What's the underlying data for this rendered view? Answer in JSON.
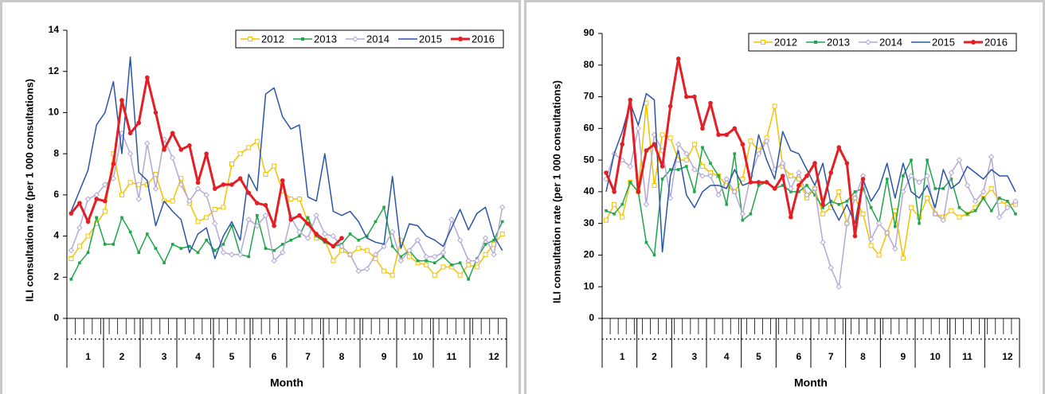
{
  "chart_data": [
    {
      "type": "line",
      "y_label": "ILI consultation rate (per 1 000 consultations)",
      "x_label": "Month",
      "legend": "upper right",
      "categories": [
        null,
        null,
        "1",
        null,
        null,
        null,
        "2",
        null,
        null,
        null,
        null,
        "3",
        null,
        null,
        null,
        "4",
        null,
        null,
        null,
        "5",
        null,
        null,
        null,
        null,
        "6",
        null,
        null,
        null,
        "7",
        null,
        null,
        null,
        "8",
        null,
        null,
        null,
        null,
        "9",
        null,
        null,
        null,
        "10",
        null,
        null,
        null,
        "11",
        null,
        null,
        null,
        null,
        "12",
        null
      ],
      "ylim": [
        0,
        14
      ],
      "yticks": [
        0,
        2,
        4,
        6,
        8,
        10,
        12,
        14
      ],
      "series": [
        {
          "name": "2012",
          "color": "#f2c200",
          "values": [
            2.9,
            3.5,
            4.0,
            4.6,
            5.2,
            8.0,
            6.0,
            6.6,
            6.5,
            6.5,
            7.0,
            5.7,
            5.7,
            6.8,
            5.6,
            4.7,
            4.9,
            5.3,
            5.4,
            7.5,
            8.0,
            8.3,
            8.6,
            7.0,
            7.4,
            6.2,
            5.8,
            5.8,
            4.7,
            3.9,
            3.8,
            2.8,
            3.3,
            3.1,
            3.4,
            3.3,
            2.9,
            2.3,
            2.1,
            3.8,
            3.0,
            2.7,
            2.6,
            2.1,
            2.5,
            2.5,
            2.1,
            2.6,
            2.5,
            3.1,
            3.6,
            4.1
          ]
        },
        {
          "name": "2013",
          "color": "#1fa54a",
          "values": [
            1.9,
            2.7,
            3.2,
            4.9,
            3.6,
            3.6,
            4.9,
            4.2,
            3.2,
            4.1,
            3.4,
            2.7,
            3.6,
            3.4,
            3.5,
            3.2,
            3.8,
            3.3,
            3.6,
            4.5,
            3.1,
            3.0,
            5.0,
            3.4,
            3.3,
            3.6,
            3.8,
            4.0,
            4.9,
            4.0,
            3.7,
            3.5,
            3.6,
            4.1,
            3.8,
            4.0,
            4.7,
            5.4,
            3.5,
            3.0,
            3.3,
            2.8,
            2.8,
            2.7,
            3.0,
            2.6,
            2.7,
            1.9,
            2.9,
            3.6,
            3.8,
            4.7
          ]
        },
        {
          "name": "2014",
          "color": "#b3a8d4",
          "values": [
            3.3,
            4.4,
            5.8,
            6.0,
            6.5,
            6.8,
            9.0,
            8.0,
            5.8,
            8.5,
            6.3,
            8.7,
            7.8,
            6.5,
            5.7,
            6.3,
            6.0,
            4.6,
            3.2,
            3.1,
            3.1,
            4.8,
            4.5,
            5.0,
            2.8,
            3.2,
            4.9,
            4.2,
            3.9,
            5.0,
            4.1,
            4.0,
            3.5,
            3.1,
            2.3,
            2.4,
            3.1,
            3.5,
            4.2,
            2.8,
            3.3,
            3.8,
            3.0,
            3.0,
            3.2,
            4.8,
            3.8,
            2.8,
            2.8,
            3.9,
            3.1,
            5.4
          ]
        },
        {
          "name": "2015",
          "color": "#2a56a8",
          "values": [
            5.2,
            6.2,
            7.2,
            9.4,
            10.0,
            11.5,
            8.0,
            12.7,
            7.1,
            6.7,
            4.5,
            5.7,
            5.2,
            4.8,
            3.2,
            4.1,
            4.4,
            2.9,
            4.0,
            4.7,
            3.8,
            7.0,
            6.2,
            10.9,
            11.2,
            9.8,
            9.2,
            9.4,
            5.9,
            5.7,
            8.0,
            5.2,
            5.0,
            5.2,
            4.7,
            3.9,
            3.7,
            3.6,
            6.9,
            3.4,
            4.6,
            4.5,
            4.0,
            3.8,
            3.5,
            4.4,
            5.3,
            4.3,
            5.1,
            5.4,
            4.0,
            3.3
          ]
        },
        {
          "name": "2016",
          "color": "#e31e24",
          "values": [
            5.1,
            5.6,
            4.7,
            5.8,
            5.7,
            7.5,
            10.6,
            9.0,
            9.5,
            11.7,
            10.0,
            8.2,
            9.0,
            8.2,
            8.4,
            6.6,
            8.0,
            6.3,
            6.5,
            6.5,
            6.8,
            6.1,
            5.6,
            5.5,
            4.5,
            6.7,
            4.8,
            5.0,
            4.6,
            4.1,
            3.8,
            3.5,
            3.9,
            null,
            null,
            null,
            null,
            null,
            null,
            null,
            null,
            null,
            null,
            null,
            null,
            null,
            null,
            null,
            null,
            null,
            null,
            null
          ]
        }
      ]
    },
    {
      "type": "line",
      "y_label": "ILI consultation rate (per 1 000 consultations)",
      "x_label": "Month",
      "legend": "upper right",
      "categories": [
        null,
        null,
        "1",
        null,
        null,
        null,
        "2",
        null,
        null,
        null,
        null,
        "3",
        null,
        null,
        null,
        "4",
        null,
        null,
        null,
        "5",
        null,
        null,
        null,
        null,
        "6",
        null,
        null,
        null,
        "7",
        null,
        null,
        null,
        "8",
        null,
        null,
        null,
        null,
        "9",
        null,
        null,
        null,
        "10",
        null,
        null,
        null,
        "11",
        null,
        null,
        null,
        null,
        "12",
        null
      ],
      "ylim": [
        0,
        90
      ],
      "yticks": [
        0,
        10,
        20,
        30,
        40,
        50,
        60,
        70,
        80,
        90
      ],
      "series": [
        {
          "name": "2012",
          "color": "#f2c200",
          "values": [
            31,
            36,
            32,
            43,
            40,
            68,
            42,
            58,
            57,
            50,
            50,
            55,
            48,
            46,
            45,
            42,
            40,
            44,
            56,
            53,
            57,
            67,
            48,
            45,
            44,
            38,
            41,
            33,
            35,
            40,
            30,
            38,
            33,
            23,
            20,
            27,
            34,
            19,
            35,
            32,
            38,
            33,
            32,
            34,
            32,
            33,
            35,
            38,
            41,
            37,
            36,
            36
          ]
        },
        {
          "name": "2013",
          "color": "#1fa54a",
          "values": [
            34,
            33,
            36,
            43,
            40,
            24,
            20,
            44,
            47,
            47,
            48,
            40,
            54,
            49,
            45,
            36,
            52,
            31,
            33,
            42,
            43,
            41,
            42,
            40,
            40,
            42,
            39,
            35,
            37,
            36,
            37,
            40,
            41,
            35,
            30,
            44,
            29,
            45,
            50,
            30,
            50,
            41,
            41,
            44,
            35,
            33,
            34,
            38,
            34,
            38,
            37,
            33
          ]
        },
        {
          "name": "2014",
          "color": "#b3a8d4",
          "values": [
            44,
            52,
            50,
            48,
            60,
            36,
            58,
            53,
            38,
            55,
            52,
            47,
            45,
            45,
            39,
            44,
            40,
            33,
            45,
            52,
            56,
            47,
            49,
            41,
            46,
            39,
            41,
            24,
            16,
            10,
            30,
            38,
            45,
            25,
            30,
            27,
            22,
            40,
            45,
            43,
            45,
            33,
            31,
            46,
            50,
            42,
            37,
            40,
            51,
            32,
            35,
            37
          ]
        },
        {
          "name": "2015",
          "color": "#2a56a8",
          "values": [
            40,
            52,
            59,
            68,
            61,
            71,
            69,
            21,
            45,
            53,
            39,
            35,
            40,
            42,
            42,
            41,
            47,
            42,
            43,
            58,
            50,
            44,
            59,
            53,
            52,
            47,
            42,
            49,
            36,
            31,
            36,
            30,
            44,
            37,
            41,
            49,
            38,
            49,
            40,
            38,
            42,
            35,
            47,
            41,
            43,
            48,
            46,
            44,
            47,
            45,
            45,
            40
          ]
        },
        {
          "name": "2016",
          "color": "#e31e24",
          "values": [
            46,
            40,
            55,
            69,
            40,
            53,
            55,
            48,
            67,
            82,
            70,
            70,
            60,
            68,
            58,
            58,
            60,
            55,
            43,
            43,
            43,
            41,
            45,
            32,
            42,
            45,
            49,
            36,
            46,
            54,
            49,
            26,
            44,
            null,
            null,
            null,
            null,
            null,
            null,
            null,
            null,
            null,
            null,
            null,
            null,
            null,
            null,
            null,
            null,
            null,
            null,
            null
          ]
        }
      ]
    }
  ]
}
